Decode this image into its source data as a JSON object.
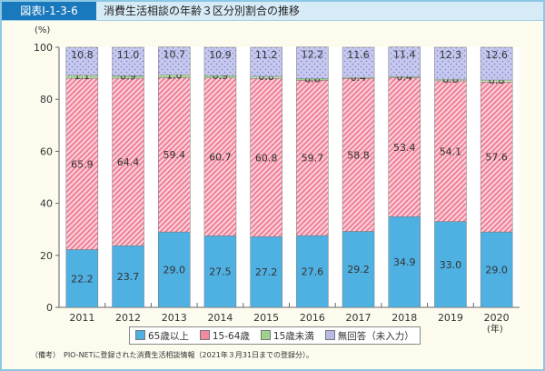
{
  "header": {
    "figure_no": "図表Ⅰ-1-3-6",
    "title": "消費生活相談の年齢３区分別割合の推移"
  },
  "note": "（備考）　PIO-NETに登録された消費生活相談情報（2021年３月31日までの登録分）。",
  "chart_data": {
    "type": "bar",
    "stacked": true,
    "title": "消費生活相談の年齢３区分別割合の推移",
    "ylabel": "(%)",
    "xlabel": "(年)",
    "ylim": [
      0,
      100
    ],
    "yticks": [
      0,
      20,
      40,
      60,
      80,
      100
    ],
    "categories": [
      "2011",
      "2012",
      "2013",
      "2014",
      "2015",
      "2016",
      "2017",
      "2018",
      "2019",
      "2020"
    ],
    "legend_position": "bottom",
    "series": [
      {
        "name": "65歳以上",
        "color": "#4fb0e2",
        "values": [
          22.2,
          23.7,
          29.0,
          27.5,
          27.2,
          27.6,
          29.2,
          34.9,
          33.0,
          29.0
        ]
      },
      {
        "name": "15-64歳",
        "color": "#f28aa0",
        "pattern": "diagonal-hatch",
        "values": [
          65.9,
          64.4,
          59.4,
          60.7,
          60.8,
          59.7,
          58.8,
          53.4,
          54.1,
          57.6
        ]
      },
      {
        "name": "15歳未満",
        "color": "#9fd38c",
        "pattern": "grid",
        "values": [
          1.1,
          0.9,
          1.0,
          0.9,
          0.8,
          0.6,
          0.4,
          0.4,
          0.6,
          0.8
        ]
      },
      {
        "name": "無回答（未入力）",
        "color": "#b9b9e8",
        "pattern": "dots",
        "values": [
          10.8,
          11.0,
          10.7,
          10.9,
          11.2,
          12.2,
          11.6,
          11.4,
          12.3,
          12.6
        ]
      }
    ]
  }
}
